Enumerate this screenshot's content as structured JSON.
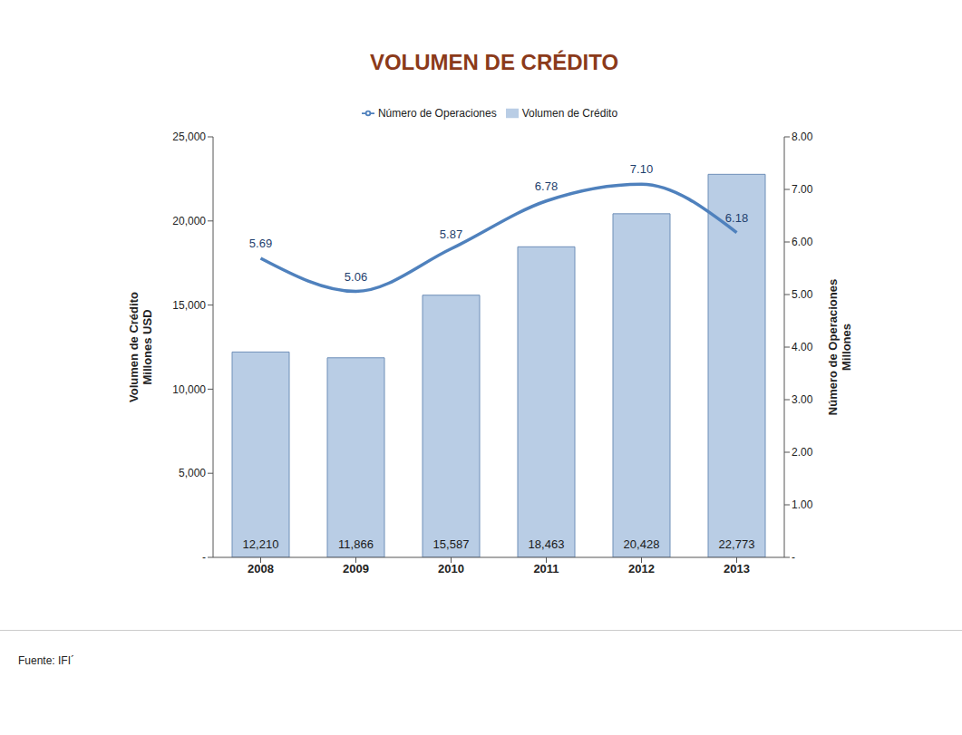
{
  "chart_data": {
    "type": "bar",
    "title": "VOLUMEN DE CRÉDITO",
    "categories": [
      "2008",
      "2009",
      "2010",
      "2011",
      "2012",
      "2013"
    ],
    "series": [
      {
        "name": "Volumen de Crédito",
        "type": "bar",
        "color": "#b9cde5",
        "values": [
          12210,
          11866,
          15587,
          18463,
          20428,
          22773
        ],
        "value_labels": [
          "12,210",
          "11,866",
          "15,587",
          "18,463",
          "20,428",
          "22,773"
        ]
      },
      {
        "name": "Número de Operaciones",
        "type": "line",
        "color": "#4f81bd",
        "axis": "y2",
        "line_style": "smooth",
        "values": [
          5.69,
          5.06,
          5.87,
          6.78,
          7.1,
          6.18
        ],
        "value_labels": [
          "5.69",
          "5.06",
          "5.87",
          "6.78",
          "7.10",
          "6.18"
        ]
      }
    ],
    "ylabel": [
      "Volumen de Crédito",
      "Millones USD"
    ],
    "y2label": [
      "Número de Operaciones",
      "Millones"
    ],
    "ylim": [
      0,
      25000
    ],
    "yticks": [
      {
        "value": 0,
        "label": "-"
      },
      {
        "value": 5000,
        "label": "5,000"
      },
      {
        "value": 10000,
        "label": "10,000"
      },
      {
        "value": 15000,
        "label": "15,000"
      },
      {
        "value": 20000,
        "label": "20,000"
      },
      {
        "value": 25000,
        "label": "25,000"
      }
    ],
    "y2lim": [
      0,
      8
    ],
    "y2ticks": [
      {
        "value": 0,
        "label": "-"
      },
      {
        "value": 1,
        "label": "1.00"
      },
      {
        "value": 2,
        "label": "2.00"
      },
      {
        "value": 3,
        "label": "3.00"
      },
      {
        "value": 4,
        "label": "4.00"
      },
      {
        "value": 5,
        "label": "5.00"
      },
      {
        "value": 6,
        "label": "6.00"
      },
      {
        "value": 7,
        "label": "7.00"
      },
      {
        "value": 8,
        "label": "8.00"
      }
    ],
    "data_labels": true,
    "legend": "top",
    "grid": false,
    "source": "Fuente: IFI´"
  }
}
